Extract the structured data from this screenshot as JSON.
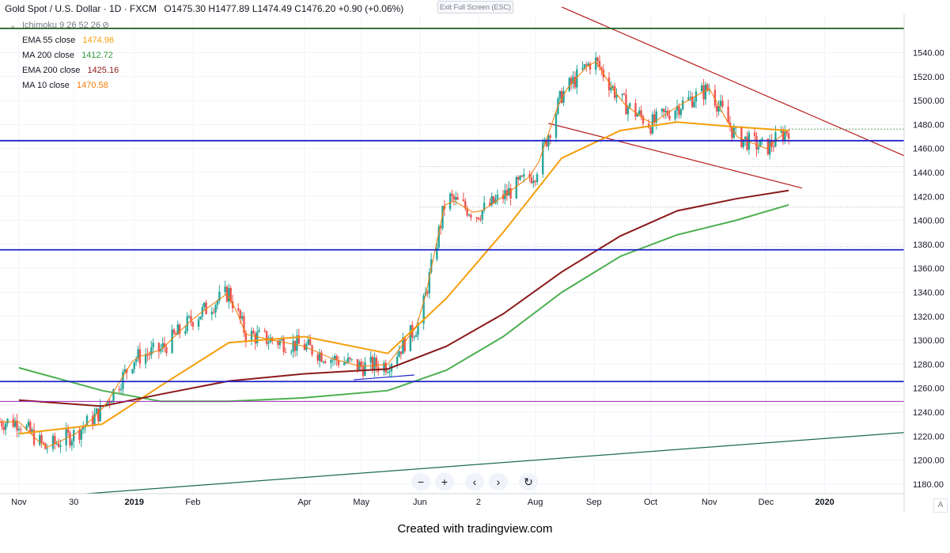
{
  "header": {
    "symbol": "Gold Spot / U.S. Dollar · 1D · FXCM",
    "ohlc": "O1475.30 H1477.89 L1474.49 C1476.20 +0.90 (+0.06%)"
  },
  "exit_fullscreen": "Exit Full Screen (ESC)",
  "indicators": [
    {
      "label": "Ichimoku 9 26 52 26",
      "value": "",
      "color": "#787b86"
    },
    {
      "label": "EMA 55 close",
      "value": "1474.96",
      "color": "#f59e0b"
    },
    {
      "label": "MA 200 close",
      "value": "1412.72",
      "color": "#2e9b3c"
    },
    {
      "label": "EMA 200 close",
      "value": "1425.16",
      "color": "#8b1a1a"
    },
    {
      "label": "MA 10 close",
      "value": "1470.58",
      "color": "#f57c00"
    }
  ],
  "toolbar": [
    "−",
    "+",
    "‹",
    "›",
    "↻"
  ],
  "footer": "Created with tradingview.com",
  "auto_label": "A",
  "colors": {
    "up": "#26a69a",
    "down": "#ef5350",
    "ema55": "#f59e0b",
    "ma200": "#4caf50",
    "ema200": "#8b1a1a",
    "ma10": "#f57c00",
    "hline_blue": "#1e22c8",
    "hline_green": "#1b5e20",
    "hline_purple": "#9c27b0",
    "channel": "#b71c1c",
    "trend": "#1d6b52"
  },
  "chart_data": {
    "type": "candlestick",
    "title": "Gold Spot / U.S. Dollar · 1D · FXCM",
    "xlabel": "",
    "ylabel": "",
    "ylim": [
      1172,
      1572
    ],
    "y_ticks": [
      1180,
      1200,
      1220,
      1240,
      1260,
      1280,
      1300,
      1320,
      1340,
      1360,
      1380,
      1400,
      1420,
      1440,
      1460,
      1480,
      1500,
      1520,
      1540
    ],
    "x_ticks": [
      "Nov",
      "30",
      "2019",
      "Feb",
      "Apr",
      "May",
      "Jun",
      "2",
      "Aug",
      "Sep",
      "Oct",
      "Nov",
      "Dec",
      "2020"
    ],
    "price_levels": [
      {
        "label": "1560.21",
        "value": 1560.21,
        "color": "#1b5e20"
      },
      {
        "label": "1476.20",
        "value": 1476.2,
        "color": "#2e7d32"
      },
      {
        "label": "1466.51",
        "value": 1466.51,
        "color": "#1e22c8"
      },
      {
        "label": "1375.49",
        "value": 1375.49,
        "color": "#1e22c8"
      },
      {
        "label": "1265.54",
        "value": 1265.54,
        "color": "#1e22c8"
      },
      {
        "label": "1249.02",
        "value": 1249.02,
        "color": "#9c27b0"
      }
    ],
    "price_series": {
      "dates": [
        "2018-11-01",
        "2018-11-15",
        "2018-12-01",
        "2018-12-15",
        "2019-01-01",
        "2019-01-15",
        "2019-02-01",
        "2019-02-20",
        "2019-03-01",
        "2019-03-15",
        "2019-04-01",
        "2019-04-15",
        "2019-05-01",
        "2019-05-15",
        "2019-06-01",
        "2019-06-15",
        "2019-07-01",
        "2019-07-15",
        "2019-08-01",
        "2019-08-15",
        "2019-09-01",
        "2019-09-15",
        "2019-10-01",
        "2019-10-15",
        "2019-11-01",
        "2019-11-15",
        "2019-12-01",
        "2019-12-13"
      ],
      "close": [
        1232,
        1210,
        1222,
        1242,
        1285,
        1292,
        1318,
        1340,
        1305,
        1300,
        1295,
        1285,
        1278,
        1280,
        1315,
        1420,
        1405,
        1420,
        1440,
        1505,
        1535,
        1500,
        1480,
        1495,
        1510,
        1470,
        1460,
        1476
      ]
    },
    "series": [
      {
        "name": "EMA 55 close",
        "dates": [
          "2018-11-01",
          "2018-12-15",
          "2019-01-15",
          "2019-02-20",
          "2019-04-01",
          "2019-05-15",
          "2019-06-15",
          "2019-07-15",
          "2019-08-15",
          "2019-09-15",
          "2019-10-15",
          "2019-11-15",
          "2019-12-13"
        ],
        "values": [
          1222,
          1230,
          1262,
          1298,
          1303,
          1289,
          1335,
          1390,
          1452,
          1475,
          1482,
          1478,
          1475
        ]
      },
      {
        "name": "MA 200 close",
        "dates": [
          "2018-11-01",
          "2018-12-15",
          "2019-01-15",
          "2019-02-20",
          "2019-04-01",
          "2019-05-15",
          "2019-06-15",
          "2019-07-15",
          "2019-08-15",
          "2019-09-15",
          "2019-10-15",
          "2019-11-15",
          "2019-12-13"
        ],
        "values": [
          1277,
          1258,
          1249,
          1249,
          1252,
          1258,
          1275,
          1303,
          1340,
          1370,
          1388,
          1400,
          1413
        ]
      },
      {
        "name": "EMA 200 close",
        "dates": [
          "2018-11-01",
          "2018-12-15",
          "2019-01-15",
          "2019-02-20",
          "2019-04-01",
          "2019-05-15",
          "2019-06-15",
          "2019-07-15",
          "2019-08-15",
          "2019-09-15",
          "2019-10-15",
          "2019-11-15",
          "2019-12-13"
        ],
        "values": [
          1250,
          1245,
          1255,
          1266,
          1272,
          1276,
          1295,
          1322,
          1357,
          1387,
          1408,
          1418,
          1425
        ]
      }
    ]
  }
}
